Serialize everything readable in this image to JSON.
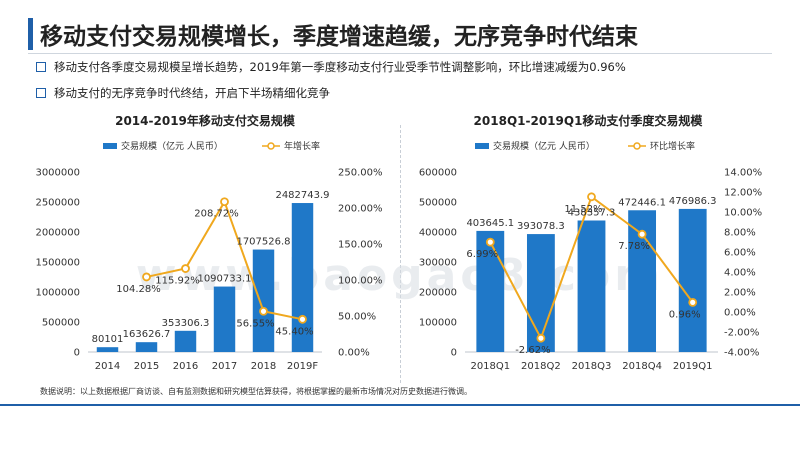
{
  "header": {
    "title": "移动支付交易规模增长，季度增速趋缓，无序竞争时代结束",
    "bullets": [
      "移动支付各季度交易规模呈增长趋势，2019年第一季度移动支付行业受季节性调整影响，环比增速减缓为0.96%",
      "移动支付的无序竞争时代终结，开启下半场精细化竞争"
    ]
  },
  "note": "数据说明：以上数据根据厂商访谈、自有监测数据和研究模型估算获得，将根据掌握的最新市场情况对历史数据进行微调。",
  "watermark": "www.baogao8.com",
  "colors": {
    "bar": "#1f78c8",
    "line": "#f0a81e",
    "accent": "#1f5fa8"
  },
  "chart_data": [
    {
      "type": "bar",
      "title": "2014-2019年移动支付交易规模",
      "categories": [
        "2014",
        "2015",
        "2016",
        "2017",
        "2018",
        "2019F"
      ],
      "series": [
        {
          "name": "交易规模（亿元 人民币）",
          "type": "bar",
          "axis": "left",
          "values": [
            80101,
            163626.7,
            353306.3,
            1090733.1,
            1707526.8,
            2482743.9
          ],
          "labels": [
            "80101",
            "163626.7",
            "353306.3",
            "1090733.1",
            "1707526.8",
            "2482743.9"
          ]
        },
        {
          "name": "年增长率",
          "type": "line",
          "axis": "right",
          "values": [
            null,
            104.28,
            115.92,
            208.72,
            56.55,
            45.4
          ],
          "labels": [
            "",
            "104.28%",
            "115.92%",
            "208.72%",
            "56.55%",
            "45.40%"
          ]
        }
      ],
      "ylim": [
        0,
        3000000
      ],
      "yticks": [
        "0",
        "500000",
        "1000000",
        "1500000",
        "2000000",
        "2500000",
        "3000000"
      ],
      "y2lim": [
        0,
        250
      ],
      "y2ticks": [
        "0.00%",
        "50.00%",
        "100.00%",
        "150.00%",
        "200.00%",
        "250.00%"
      ]
    },
    {
      "type": "bar",
      "title": "2018Q1-2019Q1移动支付季度交易规模",
      "categories": [
        "2018Q1",
        "2018Q2",
        "2018Q3",
        "2018Q4",
        "2019Q1"
      ],
      "series": [
        {
          "name": "交易规模（亿元 人民币）",
          "type": "bar",
          "axis": "left",
          "values": [
            403645.1,
            393078.3,
            438357.3,
            472446.1,
            476986.3
          ],
          "labels": [
            "403645.1",
            "393078.3",
            "438357.3",
            "472446.1",
            "476986.3"
          ]
        },
        {
          "name": "环比增长率",
          "type": "line",
          "axis": "right",
          "values": [
            6.99,
            -2.62,
            11.52,
            7.78,
            0.96
          ],
          "labels": [
            "6.99%",
            "-2.62%",
            "11.52%",
            "7.78%",
            "0.96%"
          ]
        }
      ],
      "ylim": [
        0,
        600000
      ],
      "yticks": [
        "0",
        "100000",
        "200000",
        "300000",
        "400000",
        "500000",
        "600000"
      ],
      "y2lim": [
        -4,
        14
      ],
      "y2ticks": [
        "-4.00%",
        "-2.00%",
        "0.00%",
        "2.00%",
        "4.00%",
        "6.00%",
        "8.00%",
        "10.00%",
        "12.00%",
        "14.00%"
      ]
    }
  ]
}
